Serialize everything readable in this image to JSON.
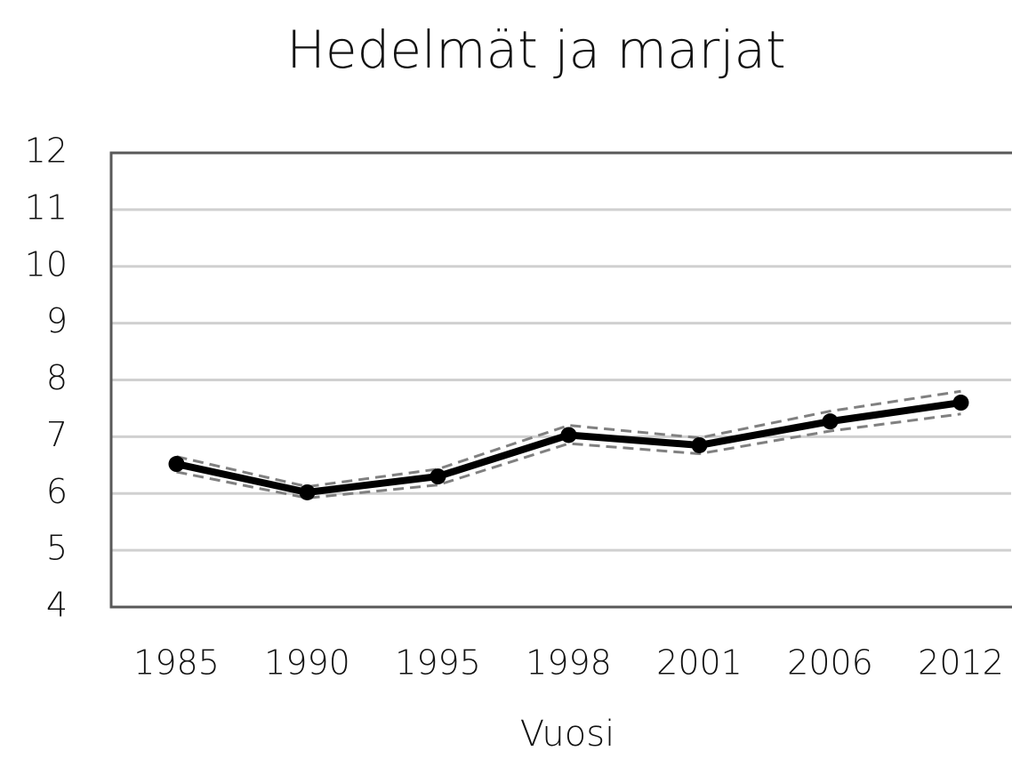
{
  "chart_data": {
    "type": "line",
    "title": "Hedelmät ja marjat",
    "x_label": "Vuosi",
    "categories": [
      "1985",
      "1990",
      "1995",
      "1998",
      "2001",
      "2006",
      "2012"
    ],
    "series": [
      {
        "color": "#808080",
        "linestyle": "dashed",
        "marker": false,
        "values": [
          6.65,
          6.12,
          6.43,
          7.2,
          6.98,
          7.45,
          7.8
        ]
      },
      {
        "color": "#808080",
        "linestyle": "dashed",
        "marker": false,
        "values": [
          6.38,
          5.92,
          6.15,
          6.88,
          6.7,
          7.1,
          7.4
        ]
      },
      {
        "color": "#000000",
        "linestyle": "solid",
        "marker": true,
        "values": [
          6.52,
          6.02,
          6.3,
          7.03,
          6.85,
          7.27,
          7.6
        ]
      }
    ],
    "ylim": [
      4,
      12
    ],
    "yticks": [
      4,
      5,
      6,
      7,
      8,
      9,
      10,
      11,
      12
    ],
    "grid": true
  }
}
